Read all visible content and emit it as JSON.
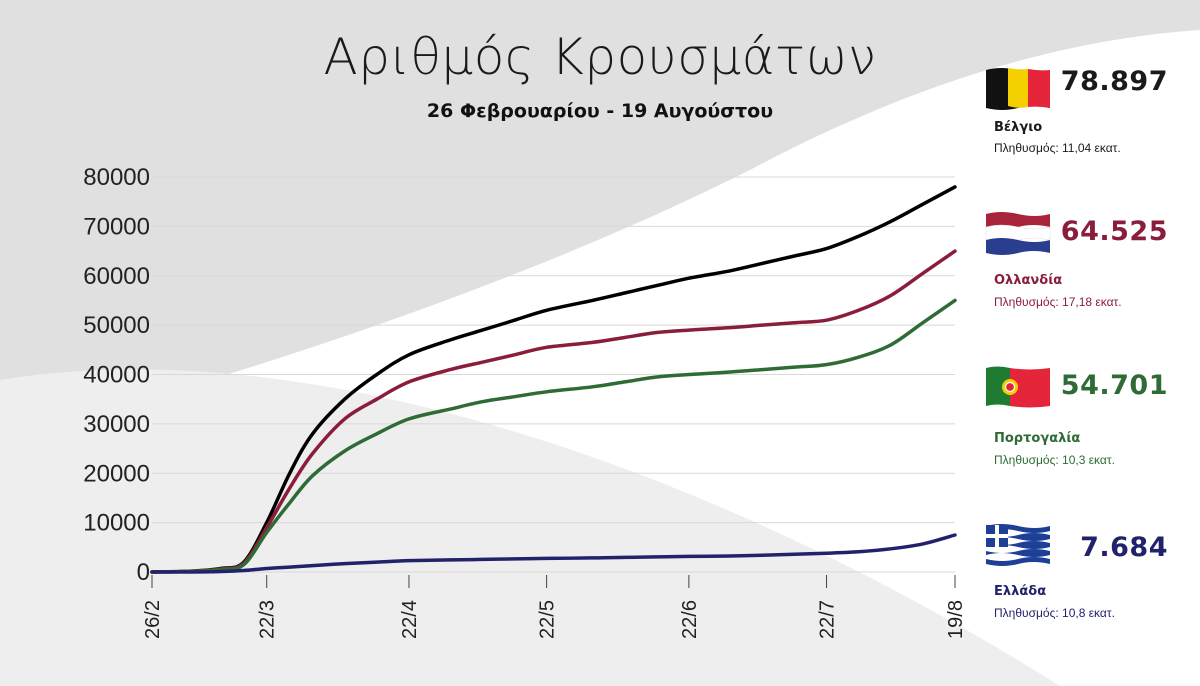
{
  "title": "Αριθμός Κρουσμάτων",
  "subtitle": "26 Φεβρουαρίου - 19 Αυγούστου",
  "countries": [
    {
      "name": "Βέλγιο",
      "value": "78.897",
      "population": "Πληθυσμός: 11,04 εκατ.",
      "color": "#000000",
      "name_color": "#1a1a1a",
      "value_color": "#1a1a1a",
      "flag": "belgium-flag"
    },
    {
      "name": "Ολλανδία",
      "value": "64.525",
      "population": "Πληθυσμός: 17,18 εκατ.",
      "color": "#8a1d3a",
      "name_color": "#8a1d3a",
      "value_color": "#8a1d3a",
      "flag": "netherlands-flag"
    },
    {
      "name": "Πορτογαλία",
      "value": "54.701",
      "population": "Πληθυσμός: 10,3 εκατ.",
      "color": "#2e6b35",
      "name_color": "#2e6b35",
      "value_color": "#2e6b35",
      "flag": "portugal-flag"
    },
    {
      "name": "Ελλάδα",
      "value": "7.684",
      "population": "Πληθυσμός: 10,8 εκατ.",
      "color": "#22226b",
      "name_color": "#22226b",
      "value_color": "#22226b",
      "flag": "greece-flag"
    }
  ],
  "chart_data": {
    "type": "line",
    "title": "Αριθμός Κρουσμάτων",
    "subtitle": "26 Φεβρουαρίου - 19 Αυγούστου",
    "xlabel": "",
    "ylabel": "",
    "ylim": [
      0,
      80000
    ],
    "yticks": [
      "0",
      "10000",
      "20000",
      "30000",
      "40000",
      "50000",
      "60000",
      "70000",
      "80000"
    ],
    "xticks": [
      "26/2",
      "22/3",
      "22/4",
      "22/5",
      "22/6",
      "22/7",
      "19/8"
    ],
    "grid": true,
    "series": [
      {
        "name": "Βέλγιο",
        "color": "#000000",
        "x": [
          "26/2",
          "5/3",
          "12/3",
          "17/3",
          "22/3",
          "27/3",
          "1/4",
          "8/4",
          "15/4",
          "22/4",
          "1/5",
          "8/5",
          "15/5",
          "22/5",
          "1/6",
          "8/6",
          "15/6",
          "22/6",
          "1/7",
          "8/7",
          "15/7",
          "22/7",
          "29/7",
          "5/8",
          "12/8",
          "19/8"
        ],
        "values": [
          0,
          150,
          700,
          2000,
          10000,
          20000,
          28000,
          35000,
          40000,
          44000,
          47000,
          49000,
          51000,
          53000,
          55000,
          56500,
          58000,
          59500,
          61000,
          62500,
          64000,
          65500,
          68000,
          71000,
          74500,
          78000
        ]
      },
      {
        "name": "Ολλανδία",
        "color": "#8a1d3a",
        "x": [
          "26/2",
          "5/3",
          "12/3",
          "17/3",
          "22/3",
          "27/3",
          "1/4",
          "8/4",
          "15/4",
          "22/4",
          "1/5",
          "8/5",
          "15/5",
          "22/5",
          "1/6",
          "8/6",
          "15/6",
          "22/6",
          "1/7",
          "8/7",
          "15/7",
          "22/7",
          "29/7",
          "5/8",
          "12/8",
          "19/8"
        ],
        "values": [
          0,
          130,
          600,
          1800,
          9000,
          17000,
          24000,
          31000,
          35000,
          38500,
          41000,
          42500,
          44000,
          45500,
          46500,
          47500,
          48500,
          49000,
          49500,
          50000,
          50500,
          51000,
          53000,
          56000,
          60500,
          65000
        ]
      },
      {
        "name": "Πορτογαλία",
        "color": "#2e6b35",
        "x": [
          "26/2",
          "5/3",
          "12/3",
          "17/3",
          "22/3",
          "27/3",
          "1/4",
          "8/4",
          "15/4",
          "22/4",
          "1/5",
          "8/5",
          "15/5",
          "22/5",
          "1/6",
          "8/6",
          "15/6",
          "22/6",
          "1/7",
          "8/7",
          "15/7",
          "22/7",
          "29/7",
          "5/8",
          "12/8",
          "19/8"
        ],
        "values": [
          0,
          100,
          500,
          1500,
          8000,
          14000,
          19500,
          24500,
          28000,
          31000,
          33000,
          34500,
          35500,
          36500,
          37500,
          38500,
          39500,
          40000,
          40500,
          41000,
          41500,
          42000,
          43500,
          46000,
          50500,
          55000
        ]
      },
      {
        "name": "Ελλάδα",
        "color": "#22226b",
        "x": [
          "26/2",
          "5/3",
          "12/3",
          "17/3",
          "22/3",
          "27/3",
          "1/4",
          "8/4",
          "15/4",
          "22/4",
          "1/5",
          "8/5",
          "15/5",
          "22/5",
          "1/6",
          "8/6",
          "15/6",
          "22/6",
          "1/7",
          "8/7",
          "15/7",
          "22/7",
          "29/7",
          "5/8",
          "12/8",
          "19/8"
        ],
        "values": [
          0,
          0,
          100,
          300,
          700,
          1000,
          1300,
          1700,
          2000,
          2300,
          2450,
          2550,
          2650,
          2750,
          2850,
          2950,
          3050,
          3150,
          3250,
          3400,
          3600,
          3800,
          4100,
          4700,
          5700,
          7500
        ]
      }
    ]
  }
}
